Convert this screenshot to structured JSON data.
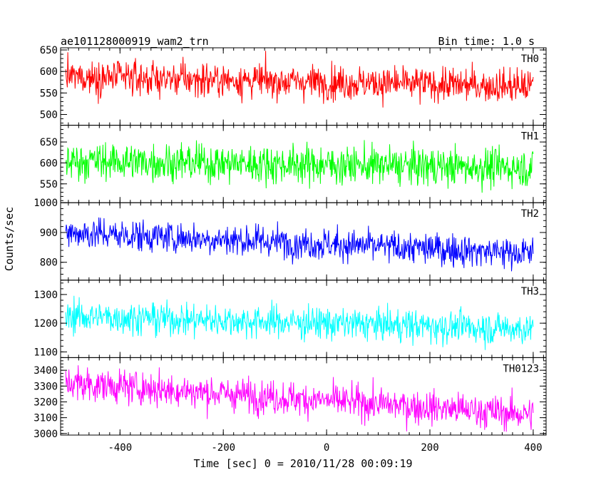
{
  "chart_data": {
    "type": "line",
    "title_left": "ae101128000919_wam2_trn",
    "title_right": "Bin time: 1.0 s",
    "xlabel": "Time [sec] 0 = 2010/11/28 00:09:19",
    "ylabel": "Counts/sec",
    "xlim": [
      -515,
      425
    ],
    "xticks": [
      -400,
      -200,
      0,
      200,
      400
    ],
    "x_data_range": [
      -505,
      400
    ],
    "bin_time_s": 1.0,
    "series": [
      {
        "name": "TH0",
        "color": "#ff0000",
        "ylim": [
          475,
          655
        ],
        "yticks": [
          500,
          550,
          600,
          650
        ],
        "mean_start": 588,
        "mean_end": 565,
        "noise": 28
      },
      {
        "name": "TH1",
        "color": "#00ff00",
        "ylim": [
          505,
          690
        ],
        "yticks": [
          550,
          600,
          650
        ],
        "mean_start": 605,
        "mean_end": 588,
        "noise": 32
      },
      {
        "name": "TH2",
        "color": "#0000ff",
        "ylim": [
          740,
          1000
        ],
        "yticks": [
          800,
          900,
          1000
        ],
        "mean_start": 900,
        "mean_end": 830,
        "noise": 38
      },
      {
        "name": "TH3",
        "color": "#00ffff",
        "ylim": [
          1080,
          1350
        ],
        "yticks": [
          1100,
          1200,
          1300
        ],
        "mean_start": 1225,
        "mean_end": 1180,
        "noise": 40
      },
      {
        "name": "TH0123",
        "color": "#ff00ff",
        "ylim": [
          2990,
          3480
        ],
        "yticks": [
          3000,
          3100,
          3200,
          3300,
          3400
        ],
        "mean_start": 3320,
        "mean_end": 3120,
        "noise": 75
      }
    ]
  }
}
